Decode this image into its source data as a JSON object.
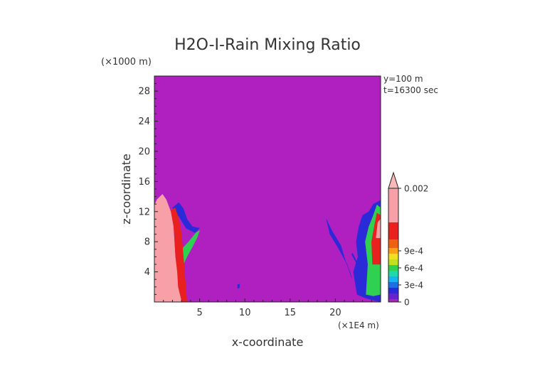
{
  "chart_data": {
    "type": "heatmap",
    "title": "H2O-I-Rain Mixing Ratio",
    "xlabel": "x-coordinate",
    "ylabel": "z-coordinate",
    "x_unit_label": "(×1E4 m)",
    "y_unit_label": "(×1000 m)",
    "xlim": [
      0,
      25
    ],
    "ylim": [
      0,
      30
    ],
    "x_ticks": [
      5,
      10,
      15,
      20
    ],
    "x_tick_labels": [
      "5",
      "10",
      "15",
      "20"
    ],
    "y_ticks": [
      4,
      8,
      12,
      16,
      20,
      24,
      28
    ],
    "y_tick_labels": [
      "4",
      "8",
      "12",
      "16",
      "20",
      "24",
      "28"
    ],
    "info_lines": [
      "y=100 m",
      "t=16300 sec"
    ],
    "background_color": "#b020c0",
    "colorbar": {
      "range": [
        0,
        0.002
      ],
      "labels": [
        {
          "value": 0,
          "text": "0"
        },
        {
          "value": 0.0003,
          "text": "3e-4"
        },
        {
          "value": 0.0006,
          "text": "6e-4"
        },
        {
          "value": 0.0009,
          "text": "9e-4"
        },
        {
          "value": 0.002,
          "text": "0.002"
        }
      ],
      "bands": [
        {
          "from": 0.0,
          "to": 5e-05,
          "color": "#b020c0"
        },
        {
          "from": 5e-05,
          "to": 0.00015,
          "color": "#6a22d0"
        },
        {
          "from": 0.00015,
          "to": 0.00025,
          "color": "#2a2ad8"
        },
        {
          "from": 0.00025,
          "to": 0.00035,
          "color": "#1e6ee8"
        },
        {
          "from": 0.00035,
          "to": 0.00045,
          "color": "#18b4f0"
        },
        {
          "from": 0.00045,
          "to": 0.00055,
          "color": "#20d8b0"
        },
        {
          "from": 0.00055,
          "to": 0.00065,
          "color": "#30d050"
        },
        {
          "from": 0.00065,
          "to": 0.00075,
          "color": "#c0e020"
        },
        {
          "from": 0.00075,
          "to": 0.00085,
          "color": "#f0e020"
        },
        {
          "from": 0.00085,
          "to": 0.00095,
          "color": "#f8a018"
        },
        {
          "from": 0.00095,
          "to": 0.0011,
          "color": "#f06010"
        },
        {
          "from": 0.0011,
          "to": 0.0014,
          "color": "#e82020"
        },
        {
          "from": 0.0014,
          "to": 0.002,
          "color": "#f8a0a8"
        }
      ],
      "overflow_color": "#f8b8b8"
    },
    "regions": [
      {
        "name": "left-storm-core",
        "level": 0.002,
        "outline": [
          [
            0,
            0
          ],
          [
            3.0,
            0
          ],
          [
            2.6,
            2
          ],
          [
            2.5,
            4
          ],
          [
            2.3,
            6
          ],
          [
            2.2,
            8
          ],
          [
            2.1,
            10
          ],
          [
            1.8,
            12
          ],
          [
            1.3,
            13.6
          ],
          [
            0.9,
            14.3
          ],
          [
            0.3,
            13.6
          ],
          [
            0,
            12.8
          ]
        ]
      },
      {
        "name": "left-storm-red-edge",
        "level": 0.0012,
        "outline": [
          [
            2.6,
            0
          ],
          [
            3.6,
            0
          ],
          [
            3.4,
            3
          ],
          [
            3.2,
            6
          ],
          [
            3.0,
            9
          ],
          [
            2.7,
            11
          ],
          [
            2.3,
            12.5
          ],
          [
            1.8,
            12.2
          ],
          [
            2.2,
            9
          ],
          [
            2.4,
            5
          ]
        ]
      },
      {
        "name": "left-storm-anvil",
        "level": 0.0006,
        "outline": [
          [
            3.0,
            7
          ],
          [
            3.8,
            8
          ],
          [
            4.6,
            9.2
          ],
          [
            5.0,
            9.5
          ],
          [
            4.7,
            8.5
          ],
          [
            4.2,
            7.3
          ],
          [
            3.6,
            6
          ],
          [
            3.2,
            5
          ]
        ]
      },
      {
        "name": "left-storm-fringe",
        "level": 0.0002,
        "outline": [
          [
            2.0,
            12.5
          ],
          [
            2.7,
            13.2
          ],
          [
            3.2,
            12.4
          ],
          [
            3.6,
            11
          ],
          [
            4.2,
            10
          ],
          [
            5.0,
            9.8
          ],
          [
            4.5,
            9.2
          ],
          [
            3.5,
            9.8
          ],
          [
            2.8,
            11.2
          ]
        ]
      },
      {
        "name": "right-storm-outer",
        "level": 0.0002,
        "outline": [
          [
            22.4,
            1
          ],
          [
            23.4,
            0.5
          ],
          [
            25,
            0
          ],
          [
            25,
            13.5
          ],
          [
            24.2,
            13
          ],
          [
            23.7,
            12
          ],
          [
            23.0,
            11.5
          ],
          [
            22.6,
            10
          ],
          [
            22.3,
            8
          ],
          [
            22.5,
            6
          ],
          [
            22.0,
            4
          ]
        ]
      },
      {
        "name": "right-storm-mid",
        "level": 0.0006,
        "outline": [
          [
            23.4,
            1
          ],
          [
            24.2,
            0.8
          ],
          [
            25,
            1
          ],
          [
            25,
            12.5
          ],
          [
            24.6,
            12.9
          ],
          [
            24.2,
            11.5
          ],
          [
            23.7,
            10
          ],
          [
            23.3,
            8
          ],
          [
            23.6,
            5
          ]
        ]
      },
      {
        "name": "right-storm-core",
        "level": 0.0012,
        "outline": [
          [
            24.1,
            5
          ],
          [
            25,
            5
          ],
          [
            25,
            11.5
          ],
          [
            24.6,
            11.8
          ],
          [
            24.3,
            10
          ],
          [
            24.0,
            8
          ]
        ]
      },
      {
        "name": "right-storm-top",
        "level": 0.002,
        "outline": [
          [
            24.5,
            8.5
          ],
          [
            25,
            8.5
          ],
          [
            25,
            11
          ],
          [
            24.7,
            10.6
          ]
        ]
      },
      {
        "name": "detached-streak-1",
        "level": 0.0002,
        "outline": [
          [
            19.0,
            11
          ],
          [
            19.6,
            9.5
          ],
          [
            20.6,
            7.5
          ],
          [
            21.1,
            5.5
          ],
          [
            21.6,
            4
          ],
          [
            21.8,
            3.2
          ],
          [
            21.3,
            5
          ],
          [
            20.4,
            7
          ],
          [
            19.4,
            9
          ]
        ]
      },
      {
        "name": "detached-streak-2",
        "level": 0.0002,
        "outline": [
          [
            21.8,
            6.3
          ],
          [
            22.4,
            5
          ],
          [
            22.9,
            3.5
          ],
          [
            22.5,
            5
          ],
          [
            21.9,
            6.5
          ]
        ]
      },
      {
        "name": "detached-speck",
        "level": 0.0002,
        "outline": [
          [
            9.2,
            1.8
          ],
          [
            9.4,
            1.9
          ],
          [
            9.4,
            2.4
          ],
          [
            9.2,
            2.3
          ]
        ]
      }
    ]
  }
}
